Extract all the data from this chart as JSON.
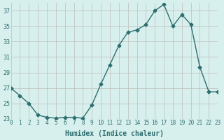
{
  "x": [
    0,
    1,
    2,
    3,
    4,
    5,
    6,
    7,
    8,
    9,
    10,
    11,
    12,
    13,
    14,
    15,
    16,
    17,
    18,
    19,
    20,
    21,
    22,
    23
  ],
  "y": [
    27,
    26,
    25,
    23.5,
    23.2,
    23.1,
    23.2,
    23.2,
    23.1,
    24.8,
    27.5,
    30.0,
    32.5,
    34.2,
    34.5,
    35.2,
    37.0,
    37.8,
    35.0,
    36.5,
    35.2,
    29.7,
    26.5,
    26.5
  ],
  "xlabel": "Humidex (Indice chaleur)",
  "ylabel": "",
  "ylim": [
    23,
    38
  ],
  "xlim": [
    0,
    23
  ],
  "yticks": [
    23,
    25,
    27,
    29,
    31,
    33,
    35,
    37
  ],
  "xticks": [
    0,
    1,
    2,
    3,
    4,
    5,
    6,
    7,
    8,
    9,
    10,
    11,
    12,
    13,
    14,
    15,
    16,
    17,
    18,
    19,
    20,
    21,
    22,
    23
  ],
  "line_color": "#2d6e6e",
  "marker": "D",
  "marker_size": 2.5,
  "bg_color": "#d7f0ee",
  "grid_color": "#c0bdb8",
  "font_color": "#2d6e6e"
}
